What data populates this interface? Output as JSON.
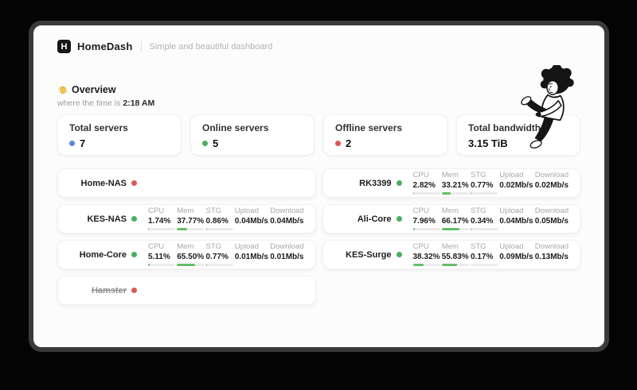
{
  "app": {
    "logo_letter": "H",
    "title": "HomeDash",
    "subtitle": "Simple and beautiful dashboard"
  },
  "overview": {
    "title": "Overview",
    "time_prefix": "where the time is",
    "time": "2:18 AM"
  },
  "stat_cards": [
    {
      "label": "Total servers",
      "value": "7",
      "dot_color": "#5b87e5"
    },
    {
      "label": "Online servers",
      "value": "5",
      "dot_color": "#49ae61"
    },
    {
      "label": "Offline servers",
      "value": "2",
      "dot_color": "#dd5757"
    },
    {
      "label": "Total bandwidth",
      "value": "3.15 TiB",
      "dot_color": ""
    }
  ],
  "metric_labels": {
    "cpu": "CPU",
    "mem": "Mem",
    "stg": "STG",
    "upload": "Upload",
    "download": "Download"
  },
  "servers": {
    "left": [
      {
        "name": "Home-NAS",
        "status": "offline"
      },
      {
        "name": "KES-NAS",
        "status": "online",
        "cpu": "1.74%",
        "cpu_pct": 1.74,
        "mem": "37.77%",
        "mem_pct": 37.77,
        "stg": "0.86%",
        "stg_pct": 0.86,
        "upload": "0.04Mb/s",
        "download": "0.04Mb/s"
      },
      {
        "name": "Home-Core",
        "status": "online",
        "cpu": "5.11%",
        "cpu_pct": 5.11,
        "mem": "65.50%",
        "mem_pct": 65.5,
        "stg": "0.77%",
        "stg_pct": 0.77,
        "upload": "0.01Mb/s",
        "download": "0.01Mb/s"
      },
      {
        "name": "Hamster",
        "status": "offline",
        "struck": true
      }
    ],
    "right": [
      {
        "name": "RK3399",
        "status": "online",
        "cpu": "2.82%",
        "cpu_pct": 2.82,
        "mem": "33.21%",
        "mem_pct": 33.21,
        "stg": "0.77%",
        "stg_pct": 0.77,
        "upload": "0.02Mb/s",
        "download": "0.02Mb/s"
      },
      {
        "name": "Ali-Core",
        "status": "online",
        "cpu": "7.96%",
        "cpu_pct": 7.96,
        "mem": "66.17%",
        "mem_pct": 66.17,
        "stg": "0.34%",
        "stg_pct": 0.34,
        "upload": "0.04Mb/s",
        "download": "0.05Mb/s"
      },
      {
        "name": "KES-Surge",
        "status": "online",
        "cpu": "38.32%",
        "cpu_pct": 38.32,
        "mem": "55.83%",
        "mem_pct": 55.83,
        "stg": "0.17%",
        "stg_pct": 0.17,
        "upload": "0.09Mb/s",
        "download": "0.13Mb/s"
      }
    ]
  },
  "colors": {
    "online": "#49ae61",
    "offline": "#dd5757",
    "bar_fill": "#63bd6a",
    "bar_track": "#ebebeb"
  }
}
